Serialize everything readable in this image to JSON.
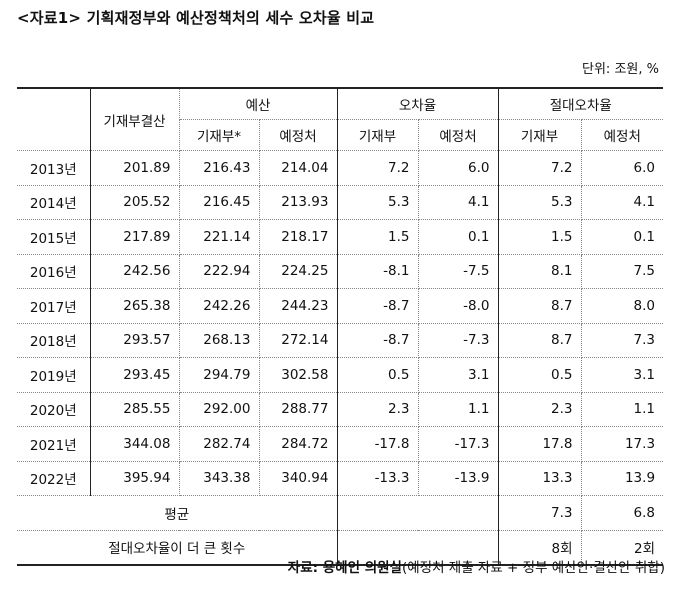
{
  "title": "<자료1> 기획재정부와 예산정책처의 세수 오차율 비교",
  "unit": "단위: 조원, %",
  "headers": {
    "settled": "기재부결산",
    "budget": "예산",
    "error": "오차율",
    "abs_error": "절대오차율",
    "moef_star": "기재부*",
    "moef": "기재부",
    "nabo": "예정처"
  },
  "rows": [
    {
      "year": "2013년",
      "settled": "201.89",
      "b_moef": "216.43",
      "b_nabo": "214.04",
      "e_moef": "7.2",
      "e_nabo": "6.0",
      "a_moef": "7.2",
      "a_nabo": "6.0"
    },
    {
      "year": "2014년",
      "settled": "205.52",
      "b_moef": "216.45",
      "b_nabo": "213.93",
      "e_moef": "5.3",
      "e_nabo": "4.1",
      "a_moef": "5.3",
      "a_nabo": "4.1"
    },
    {
      "year": "2015년",
      "settled": "217.89",
      "b_moef": "221.14",
      "b_nabo": "218.17",
      "e_moef": "1.5",
      "e_nabo": "0.1",
      "a_moef": "1.5",
      "a_nabo": "0.1"
    },
    {
      "year": "2016년",
      "settled": "242.56",
      "b_moef": "222.94",
      "b_nabo": "224.25",
      "e_moef": "-8.1",
      "e_nabo": "-7.5",
      "a_moef": "8.1",
      "a_nabo": "7.5"
    },
    {
      "year": "2017년",
      "settled": "265.38",
      "b_moef": "242.26",
      "b_nabo": "244.23",
      "e_moef": "-8.7",
      "e_nabo": "-8.0",
      "a_moef": "8.7",
      "a_nabo": "8.0"
    },
    {
      "year": "2018년",
      "settled": "293.57",
      "b_moef": "268.13",
      "b_nabo": "272.14",
      "e_moef": "-8.7",
      "e_nabo": "-7.3",
      "a_moef": "8.7",
      "a_nabo": "7.3"
    },
    {
      "year": "2019년",
      "settled": "293.45",
      "b_moef": "294.79",
      "b_nabo": "302.58",
      "e_moef": "0.5",
      "e_nabo": "3.1",
      "a_moef": "0.5",
      "a_nabo": "3.1"
    },
    {
      "year": "2020년",
      "settled": "285.55",
      "b_moef": "292.00",
      "b_nabo": "288.77",
      "e_moef": "2.3",
      "e_nabo": "1.1",
      "a_moef": "2.3",
      "a_nabo": "1.1"
    },
    {
      "year": "2021년",
      "settled": "344.08",
      "b_moef": "282.74",
      "b_nabo": "284.72",
      "e_moef": "-17.8",
      "e_nabo": "-17.3",
      "a_moef": "17.8",
      "a_nabo": "17.3"
    },
    {
      "year": "2022년",
      "settled": "395.94",
      "b_moef": "343.38",
      "b_nabo": "340.94",
      "e_moef": "-13.3",
      "e_nabo": "-13.9",
      "a_moef": "13.3",
      "a_nabo": "13.9"
    }
  ],
  "average": {
    "label": "평균",
    "a_moef": "7.3",
    "a_nabo": "6.8"
  },
  "count": {
    "label": "절대오차율이 더 큰 횟수",
    "a_moef": "8회",
    "a_nabo": "2회"
  },
  "source": {
    "label": "자료: 용혜인 의원실",
    "detail": "(예정처 제출 자료 + 정부 예산안·결산안 취합)"
  }
}
